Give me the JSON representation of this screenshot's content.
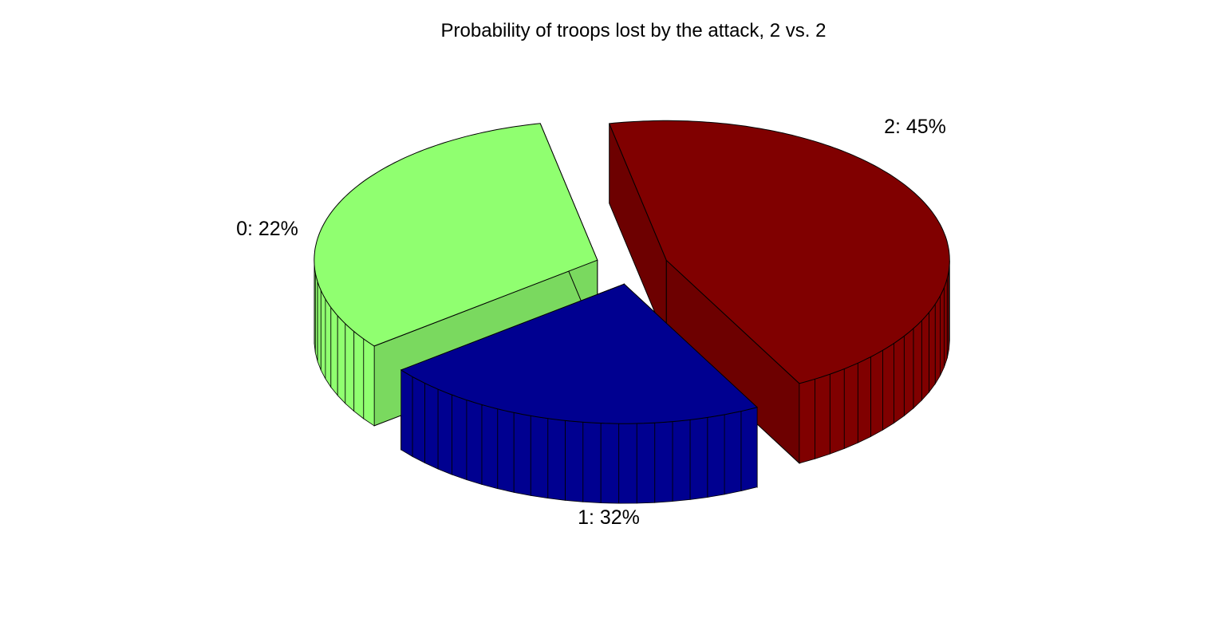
{
  "chart_data": {
    "type": "pie",
    "title": "Probability of troops lost by the attack, 2 vs. 2",
    "three_d": true,
    "exploded": true,
    "slices": [
      {
        "category": "0",
        "label": "0: 22%",
        "value": 22,
        "color": "#000090"
      },
      {
        "category": "1",
        "label": "1: 32%",
        "value": 32,
        "color": "#90ff70"
      },
      {
        "category": "2",
        "label": "2: 45%",
        "value": 45,
        "color": "#800000"
      }
    ]
  }
}
